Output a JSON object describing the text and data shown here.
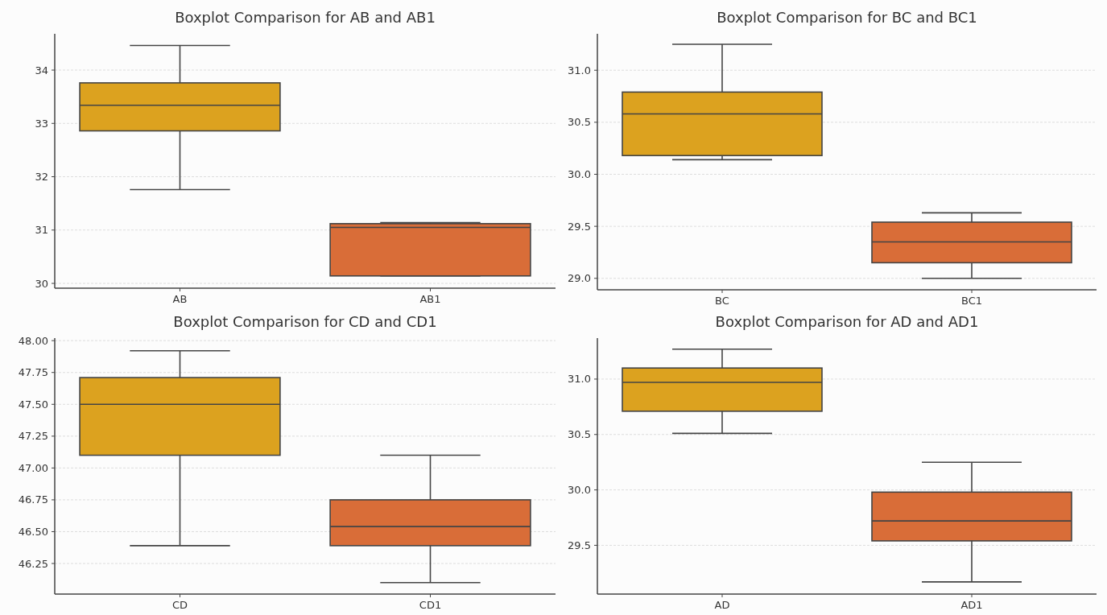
{
  "chart_data": [
    {
      "type": "box",
      "title": "Boxplot Comparison for AB and AB1",
      "categories": [
        "AB",
        "AB1"
      ],
      "colors": [
        "#dca21f",
        "#d96d38"
      ],
      "boxes": [
        {
          "low": 31.76,
          "q1": 32.86,
          "median": 33.34,
          "q3": 33.76,
          "high": 34.46
        },
        {
          "low": 30.14,
          "q1": 30.14,
          "median": 31.05,
          "q3": 31.12,
          "high": 31.14
        }
      ],
      "ylim": [
        29.91,
        34.68
      ],
      "yticks": [
        30,
        31,
        32,
        33,
        34
      ],
      "grid": "y"
    },
    {
      "type": "box",
      "title": "Boxplot Comparison for BC and BC1",
      "categories": [
        "BC",
        "BC1"
      ],
      "colors": [
        "#dca21f",
        "#d96d38"
      ],
      "boxes": [
        {
          "low": 30.14,
          "q1": 30.18,
          "median": 30.58,
          "q3": 30.79,
          "high": 31.25
        },
        {
          "low": 29.0,
          "q1": 29.15,
          "median": 29.35,
          "q3": 29.54,
          "high": 29.63
        }
      ],
      "ylim": [
        28.89,
        31.35
      ],
      "yticks": [
        {
          "value": 29,
          "label": "29.0"
        },
        29.5,
        {
          "value": 30,
          "label": "30.0"
        },
        30.5,
        {
          "value": 31,
          "label": "31.0"
        }
      ],
      "grid": "y"
    },
    {
      "type": "box",
      "title": "Boxplot Comparison for CD and CD1",
      "categories": [
        "CD",
        "CD1"
      ],
      "colors": [
        "#dca21f",
        "#d96d38"
      ],
      "boxes": [
        {
          "low": 46.39,
          "q1": 47.1,
          "median": 47.5,
          "q3": 47.71,
          "high": 47.92
        },
        {
          "low": 46.1,
          "q1": 46.39,
          "median": 46.54,
          "q3": 46.75,
          "high": 47.1
        }
      ],
      "ylim": [
        46.01,
        48.02
      ],
      "yticks": [
        46.25,
        {
          "value": 46.5,
          "label": "46.50"
        },
        46.75,
        {
          "value": 47,
          "label": "47.00"
        },
        47.25,
        {
          "value": 47.5,
          "label": "47.50"
        },
        47.75,
        {
          "value": 48,
          "label": "48.00"
        }
      ],
      "grid": "y"
    },
    {
      "type": "box",
      "title": "Boxplot Comparison for AD and AD1",
      "categories": [
        "AD",
        "AD1"
      ],
      "colors": [
        "#dca21f",
        "#d96d38"
      ],
      "boxes": [
        {
          "low": 30.51,
          "q1": 30.71,
          "median": 30.97,
          "q3": 31.1,
          "high": 31.27
        },
        {
          "low": 29.17,
          "q1": 29.54,
          "median": 29.72,
          "q3": 29.98,
          "high": 30.25
        }
      ],
      "ylim": [
        29.06,
        31.37
      ],
      "yticks": [
        29.5,
        {
          "value": 30,
          "label": "30.0"
        },
        30.5,
        {
          "value": 31,
          "label": "31.0"
        }
      ],
      "grid": "y"
    }
  ]
}
